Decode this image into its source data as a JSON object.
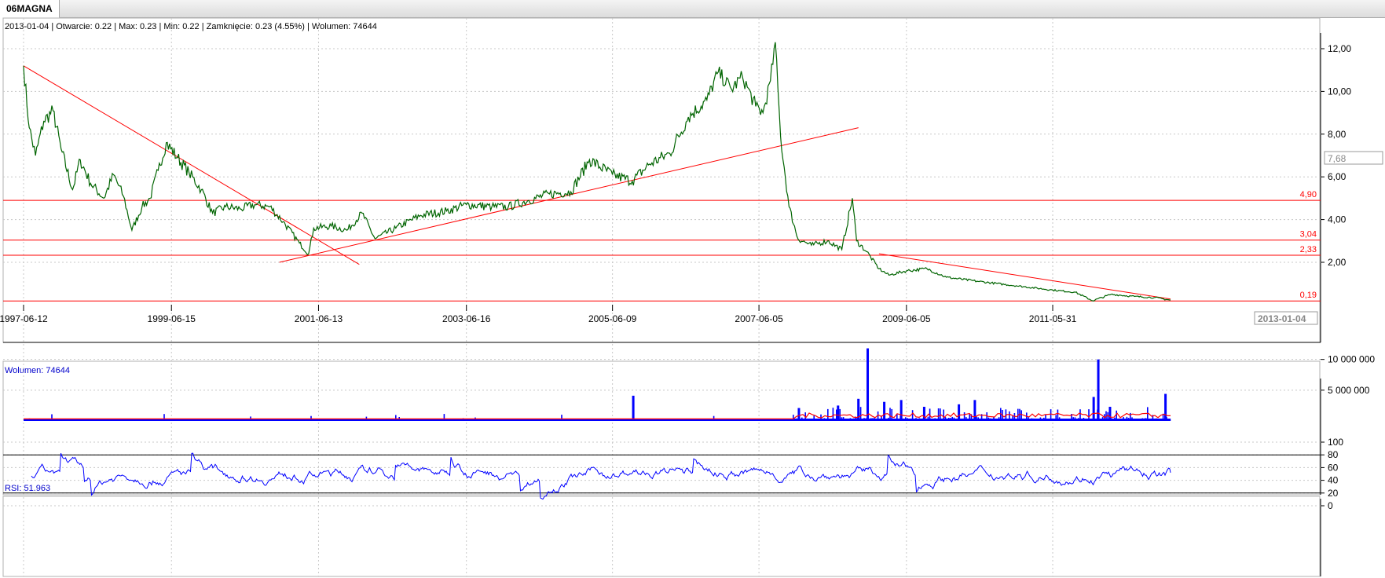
{
  "tab": {
    "label": "06MAGNA"
  },
  "info_line": "2013-01-04 | Otwarcie: 0.22 | Max: 0.23 | Min: 0.22 | Zamknięcie: 0.23 (4.55%)  | Wolumen: 74644",
  "volume_label": "Wolumen: 74644",
  "rsi_label": "RSI: 51.963",
  "price_marker": "7,68",
  "date_marker": "2013-01-04",
  "colors": {
    "price": "#006400",
    "support": "#ff0000",
    "volume": "#0000ff",
    "volume_avg": "#ff0000",
    "rsi": "#0000ff",
    "grid": "#c8c8c8"
  },
  "chart_data": [
    {
      "type": "line",
      "title": "06MAGNA",
      "x_ticks": [
        "1997-06-12",
        "1999-06-15",
        "2001-06-13",
        "2003-06-16",
        "2005-06-09",
        "2007-06-05",
        "2009-06-05",
        "2011-05-31"
      ],
      "y_ticks": [
        "2,00",
        "4,00",
        "6,00",
        "8,00",
        "10,00",
        "12,00"
      ],
      "ylim": [
        0,
        12.8
      ],
      "grid": true,
      "series": [
        {
          "points": [
            [
              "1997-06-12",
              11.2
            ],
            [
              "1997-07-10",
              8.3
            ],
            [
              "1997-08-10",
              7.0
            ],
            [
              "1997-09-20",
              8.6
            ],
            [
              "1997-11-05",
              9.1
            ],
            [
              "1997-12-15",
              7.3
            ],
            [
              "1998-02-10",
              5.4
            ],
            [
              "1998-03-20",
              6.8
            ],
            [
              "1998-05-10",
              5.7
            ],
            [
              "1998-07-15",
              5.0
            ],
            [
              "1998-09-01",
              6.1
            ],
            [
              "1998-10-20",
              5.1
            ],
            [
              "1998-12-01",
              3.5
            ],
            [
              "1999-01-20",
              4.6
            ],
            [
              "1999-03-01",
              5.0
            ],
            [
              "1999-04-10",
              6.3
            ],
            [
              "1999-05-20",
              7.6
            ],
            [
              "1999-07-15",
              6.9
            ],
            [
              "1999-09-10",
              6.2
            ],
            [
              "1999-11-10",
              5.4
            ],
            [
              "2000-01-05",
              4.3
            ],
            [
              "2000-03-10",
              4.6
            ],
            [
              "2000-05-20",
              4.5
            ],
            [
              "2000-08-01",
              4.7
            ],
            [
              "2000-10-15",
              4.6
            ],
            [
              "2000-12-20",
              3.9
            ],
            [
              "2001-03-10",
              2.9
            ],
            [
              "2001-04-25",
              2.4
            ],
            [
              "2001-05-20",
              3.6
            ],
            [
              "2001-08-15",
              3.7
            ],
            [
              "2001-11-01",
              3.5
            ],
            [
              "2002-01-15",
              4.3
            ],
            [
              "2002-03-20",
              3.1
            ],
            [
              "2002-07-01",
              3.6
            ],
            [
              "2002-11-01",
              4.2
            ],
            [
              "2003-03-10",
              4.4
            ],
            [
              "2003-06-16",
              4.7
            ],
            [
              "2003-10-20",
              4.6
            ],
            [
              "2004-01-10",
              4.6
            ],
            [
              "2004-04-20",
              4.9
            ],
            [
              "2004-08-01",
              5.2
            ],
            [
              "2004-11-15",
              5.3
            ],
            [
              "2005-02-15",
              6.8
            ],
            [
              "2005-06-09",
              6.1
            ],
            [
              "2005-09-15",
              5.8
            ],
            [
              "2005-12-10",
              6.6
            ],
            [
              "2006-03-20",
              7.1
            ],
            [
              "2006-06-20",
              8.8
            ],
            [
              "2006-09-20",
              9.6
            ],
            [
              "2006-11-15",
              10.9
            ],
            [
              "2007-01-20",
              10.1
            ],
            [
              "2007-03-15",
              10.7
            ],
            [
              "2007-05-20",
              9.3
            ],
            [
              "2007-06-25",
              9.0
            ],
            [
              "2007-08-01",
              10.5
            ],
            [
              "2007-08-25",
              12.3
            ],
            [
              "2007-09-20",
              7.9
            ],
            [
              "2007-11-01",
              4.6
            ],
            [
              "2007-12-15",
              3.1
            ],
            [
              "2008-02-20",
              2.8
            ],
            [
              "2008-05-10",
              3.0
            ],
            [
              "2008-07-20",
              2.6
            ],
            [
              "2008-09-10",
              5.0
            ],
            [
              "2008-10-01",
              3.0
            ],
            [
              "2008-11-20",
              2.5
            ],
            [
              "2009-01-20",
              1.7
            ],
            [
              "2009-03-10",
              1.4
            ],
            [
              "2009-06-05",
              1.6
            ],
            [
              "2009-09-15",
              1.7
            ],
            [
              "2009-12-20",
              1.3
            ],
            [
              "2010-06-01",
              1.1
            ],
            [
              "2010-12-01",
              0.9
            ],
            [
              "2011-05-31",
              0.7
            ],
            [
              "2011-09-20",
              0.6
            ],
            [
              "2011-12-15",
              0.2
            ],
            [
              "2012-03-15",
              0.5
            ],
            [
              "2012-07-10",
              0.4
            ],
            [
              "2012-10-15",
              0.35
            ],
            [
              "2013-01-04",
              0.23
            ]
          ]
        }
      ],
      "levels": [
        4.9,
        3.04,
        2.33,
        0.19
      ],
      "level_labels": [
        "4,90",
        "3,04",
        "2,33",
        "0,19"
      ],
      "trendlines": [
        {
          "from": [
            "1997-06-12",
            11.2
          ],
          "to": [
            "2002-01-01",
            1.9
          ]
        },
        {
          "from": [
            "2000-12-01",
            2.0
          ],
          "to": [
            "2008-10-10",
            8.3
          ]
        },
        {
          "from": [
            "2009-01-20",
            2.4
          ],
          "to": [
            "2013-01-04",
            0.28
          ]
        }
      ]
    },
    {
      "type": "bar",
      "ylabel": "Wolumen",
      "y_ticks": [
        "5 000 000",
        "10 000 000"
      ],
      "ylim": [
        0,
        12000000
      ],
      "spikes": [
        [
          "2005-09-20",
          4100000
        ],
        [
          "2008-11-25",
          11800000
        ],
        [
          "2008-10-10",
          3600000
        ],
        [
          "2009-02-15",
          3100000
        ],
        [
          "2009-05-10",
          3400000
        ],
        [
          "2009-09-01",
          2300000
        ],
        [
          "2010-02-20",
          2700000
        ],
        [
          "2010-05-10",
          3400000
        ],
        [
          "2012-01-12",
          10000000
        ],
        [
          "2011-12-20",
          3900000
        ],
        [
          "2012-03-10",
          2300000
        ],
        [
          "2012-12-10",
          4400000
        ],
        [
          "2007-12-20",
          2100000
        ],
        [
          "2008-07-01",
          2500000
        ]
      ]
    },
    {
      "type": "line",
      "ylabel": "RSI",
      "y_ticks": [
        "0",
        "20",
        "40",
        "60",
        "80",
        "100"
      ],
      "ylim": [
        0,
        100
      ],
      "levels": [
        20,
        80
      ],
      "last": 51.963
    }
  ]
}
